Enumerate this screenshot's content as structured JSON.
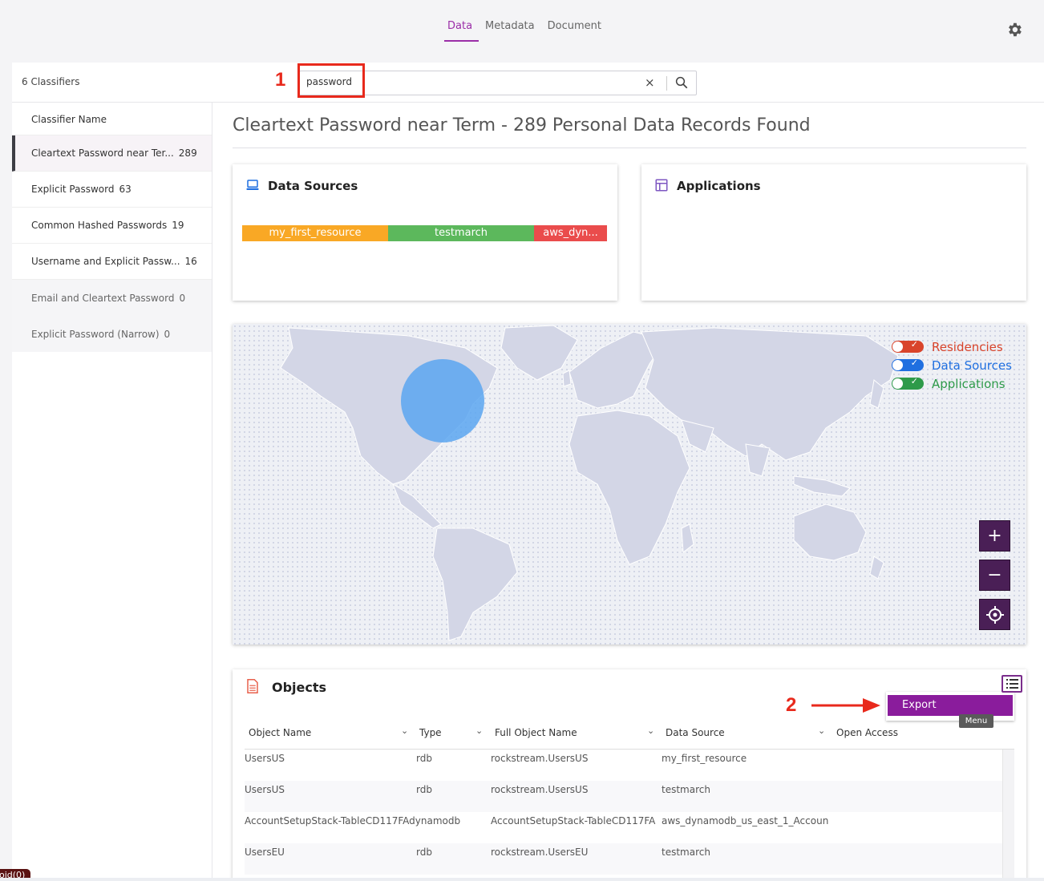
{
  "tabs": [
    {
      "label": "Data",
      "active": true
    },
    {
      "label": "Metadata",
      "active": false
    },
    {
      "label": "Document",
      "active": false
    }
  ],
  "header": {
    "classifiers_count": "6 Classifiers",
    "step1": "1",
    "step2": "2"
  },
  "search": {
    "value": "password",
    "clear": "×"
  },
  "sidebar": {
    "heading": "Classifier Name",
    "items": [
      {
        "label": "Cleartext Password near Ter...",
        "count": "289",
        "active": true,
        "dim": false
      },
      {
        "label": "Explicit Password",
        "count": "63",
        "active": false,
        "dim": false
      },
      {
        "label": "Common Hashed Passwords",
        "count": "19",
        "active": false,
        "dim": false
      },
      {
        "label": "Username and Explicit Passw...",
        "count": "16",
        "active": false,
        "dim": false
      },
      {
        "label": "Email and Cleartext Password",
        "count": "0",
        "active": false,
        "dim": true
      },
      {
        "label": "Explicit Password (Narrow)",
        "count": "0",
        "active": false,
        "dim": true
      }
    ]
  },
  "main": {
    "title": "Cleartext Password near Term - 289 Personal Data Records Found"
  },
  "data_sources": {
    "title": "Data Sources",
    "segments": [
      {
        "label": "my_first_resource",
        "color": "#f9a825",
        "share": 0.4
      },
      {
        "label": "testmarch",
        "color": "#5cb85c",
        "share": 0.4
      },
      {
        "label": "aws_dyn...",
        "color": "#ea4c4c",
        "share": 0.2
      }
    ]
  },
  "applications": {
    "title": "Applications"
  },
  "map": {
    "legend": [
      {
        "label": "Residencies",
        "color": "#d9442b"
      },
      {
        "label": "Data Sources",
        "color": "#1f6fe0"
      },
      {
        "label": "Applications",
        "color": "#2e9a4a"
      }
    ],
    "zoom_in": "+",
    "zoom_out": "−",
    "land_color": "#d3d6e6",
    "bubble_color": "#5aa6f0"
  },
  "objects": {
    "title": "Objects",
    "menu": {
      "export": "Export",
      "tooltip": "Menu"
    },
    "columns": [
      "Object Name",
      "Type",
      "Full Object Name",
      "Data Source",
      "Open Access"
    ],
    "rows": [
      [
        "UsersUS",
        "rdb",
        "rockstream.UsersUS",
        "my_first_resource",
        ""
      ],
      [
        "UsersUS",
        "rdb",
        "rockstream.UsersUS",
        "testmarch",
        ""
      ],
      [
        "AccountSetupStack-TableCD117FAdynamodb",
        "",
        "AccountSetupStack-TableCD117FA",
        "aws_dynamodb_us_east_1_Accoun",
        ""
      ],
      [
        "UsersEU",
        "rdb",
        "rockstream.UsersEU",
        "testmarch",
        ""
      ]
    ]
  },
  "debug": {
    "label": "oid(0)"
  }
}
